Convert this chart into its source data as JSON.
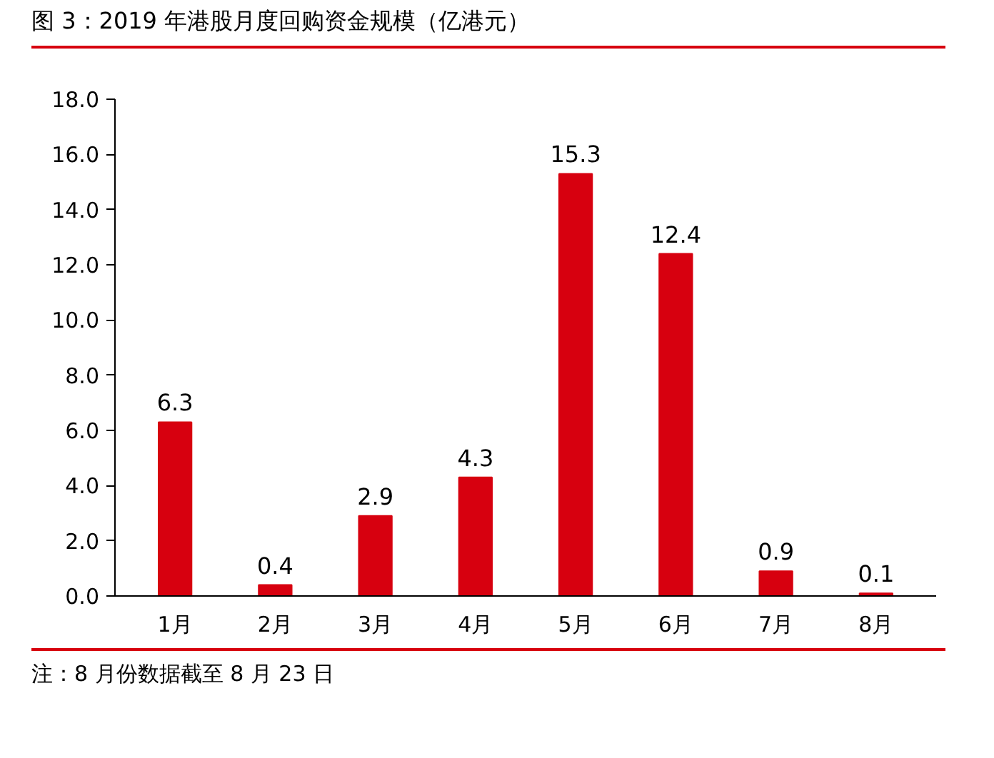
{
  "chart_data": {
    "type": "bar",
    "title": "图 3：2019 年港股月度回购资金规模（亿港元）",
    "categories": [
      "1月",
      "2月",
      "3月",
      "4月",
      "5月",
      "6月",
      "7月",
      "8月"
    ],
    "values": [
      6.3,
      0.4,
      2.9,
      4.3,
      15.3,
      12.4,
      0.9,
      0.1
    ],
    "color": "#d7000f",
    "ylim": [
      0,
      18
    ],
    "yticks": [
      {
        "value": 0,
        "label": "0.0"
      },
      {
        "value": 2,
        "label": "2.0"
      },
      {
        "value": 4,
        "label": "4.0"
      },
      {
        "value": 6,
        "label": "6.0"
      },
      {
        "value": 8,
        "label": "8.0"
      },
      {
        "value": 10,
        "label": "10.0"
      },
      {
        "value": 12,
        "label": "12.0"
      },
      {
        "value": 14,
        "label": "14.0"
      },
      {
        "value": 16,
        "label": "16.0"
      },
      {
        "value": 18,
        "label": "18.0"
      }
    ],
    "grid": false,
    "data_labels": true,
    "annotations": [
      "注：8 月份数据截至 8 月 23 日"
    ]
  }
}
